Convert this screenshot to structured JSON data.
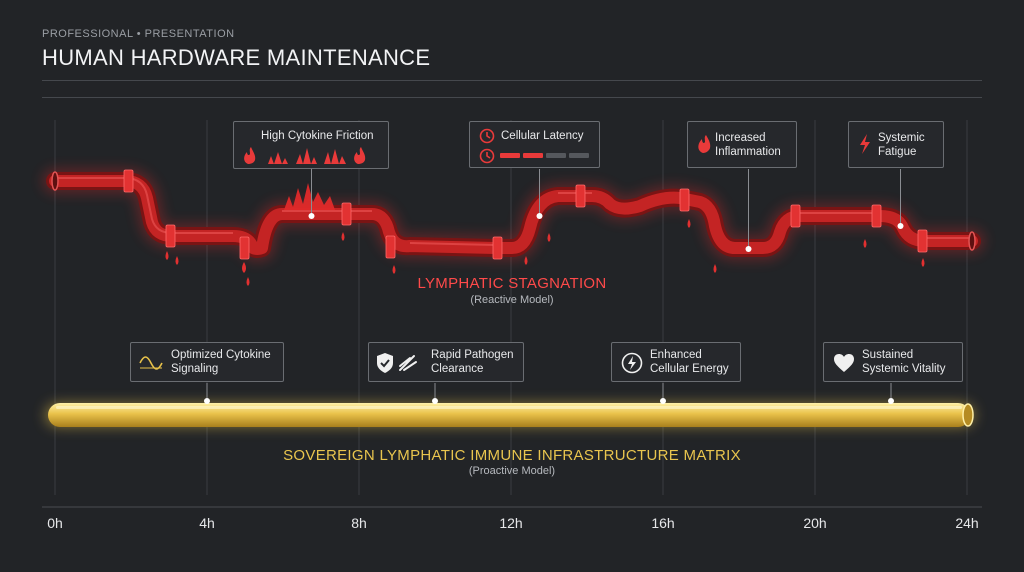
{
  "header": {
    "eyebrow": "PROFESSIONAL • PRESENTATION",
    "title": "HUMAN HARDWARE MAINTENANCE"
  },
  "reactive": {
    "title": "LYMPHATIC STAGNATION",
    "subtitle": "(Reactive Model)",
    "callouts": [
      {
        "label": "High Cytokine Friction",
        "icon": "flame-icon",
        "hour": 6.75
      },
      {
        "label": "Cellular Latency",
        "icon": "clock-icon",
        "hour": 12.75
      },
      {
        "label": "Increased Inflammation",
        "icon": "flame-icon",
        "hour": 18.25
      },
      {
        "label": "Systemic Fatigue",
        "icon": "lightning-icon",
        "hour": 22.25
      }
    ]
  },
  "proactive": {
    "title": "SOVEREIGN LYMPHATIC IMMUNE INFRASTRUCTURE MATRIX",
    "subtitle": "(Proactive Model)",
    "callouts": [
      {
        "label": "Optimized Cytokine Signaling",
        "icon": "wave-icon",
        "hour": 4
      },
      {
        "label": "Rapid Pathogen Clearance",
        "icon": "shield-check-icon",
        "hour": 10
      },
      {
        "label": "Enhanced Cellular Energy",
        "icon": "lightning-circle-icon",
        "hour": 16
      },
      {
        "label": "Sustained Systemic Vitality",
        "icon": "heart-icon",
        "hour": 22
      }
    ]
  },
  "axis": {
    "ticks": [
      "0h",
      "4h",
      "8h",
      "12h",
      "16h",
      "20h",
      "24h"
    ]
  },
  "colors": {
    "background": "#222427",
    "reactive": "#d42a2a",
    "proactive": "#e8c24a"
  }
}
